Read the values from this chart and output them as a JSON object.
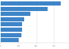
{
  "values": [
    336.96,
    262.56,
    165.33,
    130.65,
    121.27,
    119.44,
    116.99,
    100.08
  ],
  "bar_color": "#3d85c8",
  "background_color": "#ffffff",
  "xlim": [
    0,
    380
  ],
  "xticks": [
    0,
    100,
    200,
    300
  ],
  "figsize": [
    1.0,
    0.71
  ],
  "dpi": 100,
  "bar_height": 0.78,
  "grid_color": "#e0e0e0",
  "tick_color": "#999999",
  "tick_fontsize": 1.8
}
